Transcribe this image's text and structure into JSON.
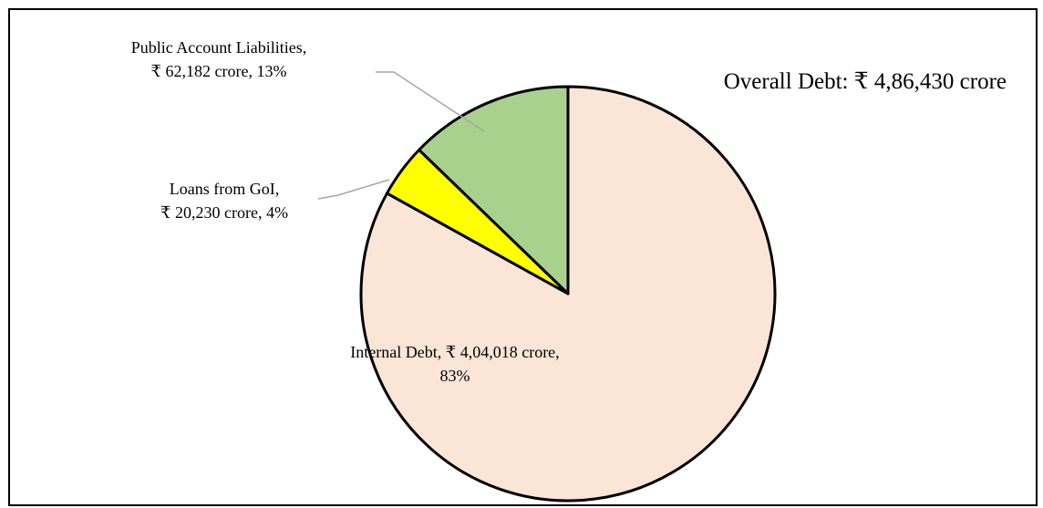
{
  "chart_data": {
    "type": "pie",
    "annotation": "Overall Debt: ₹ 4,86,430 crore",
    "slices": [
      {
        "name": "Internal Debt",
        "value": 404018,
        "percent": 83,
        "color": "#fbe5d6",
        "label_lines": [
          "Internal Debt, ₹ 4,04,018 crore,",
          "83%"
        ]
      },
      {
        "name": "Loans from GoI",
        "value": 20230,
        "percent": 4,
        "color": "#ffff00",
        "label_lines": [
          "Loans from GoI,",
          "₹ 20,230 crore, 4%"
        ]
      },
      {
        "name": "Public Account Liabilities",
        "value": 62182,
        "percent": 13,
        "color": "#a9d18e",
        "label_lines": [
          "Public Account Liabilities,",
          "₹ 62,182 crore, 13%"
        ]
      }
    ],
    "start_angle": "12 o'clock",
    "direction": "clockwise",
    "legend": "none",
    "slice_border_color": "#000000",
    "leader_line_color": "#a6a6a6"
  }
}
